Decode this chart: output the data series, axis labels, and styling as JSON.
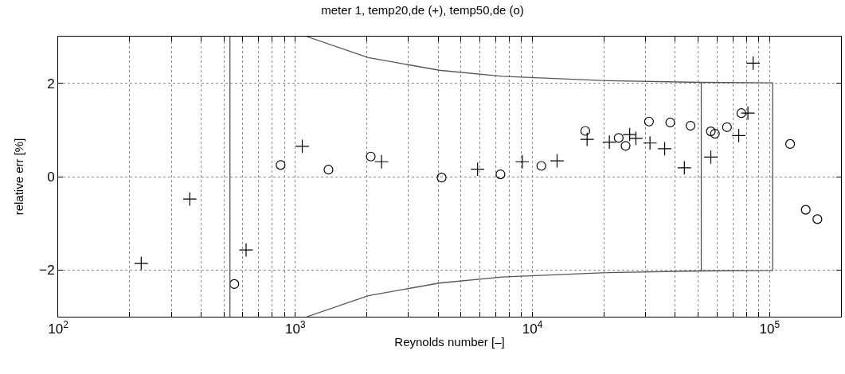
{
  "chart_data": {
    "type": "scatter",
    "title": "meter 1, temp20,de (+), temp50,de (o)",
    "xlabel": "Reynolds number [–]",
    "ylabel": "relative err [%]",
    "log": "x",
    "grid": true,
    "xlim": [
      100,
      200000
    ],
    "ylim": [
      -3,
      3
    ],
    "xticks": [
      {
        "value": 100,
        "label": "10$^{2}$"
      },
      {
        "value": 200,
        "label": null
      },
      {
        "value": 300,
        "label": null
      },
      {
        "value": 400,
        "label": null
      },
      {
        "value": 500,
        "label": null
      },
      {
        "value": 600,
        "label": null
      },
      {
        "value": 700,
        "label": null
      },
      {
        "value": 800,
        "label": null
      },
      {
        "value": 900,
        "label": null
      },
      {
        "value": 1000,
        "label": "10$^{3}$"
      },
      {
        "value": 2000,
        "label": null
      },
      {
        "value": 3000,
        "label": null
      },
      {
        "value": 4000,
        "label": null
      },
      {
        "value": 5000,
        "label": null
      },
      {
        "value": 6000,
        "label": null
      },
      {
        "value": 7000,
        "label": null
      },
      {
        "value": 8000,
        "label": null
      },
      {
        "value": 9000,
        "label": null
      },
      {
        "value": 10000,
        "label": "10$^{4}$"
      },
      {
        "value": 20000,
        "label": null
      },
      {
        "value": 30000,
        "label": null
      },
      {
        "value": 40000,
        "label": null
      },
      {
        "value": 50000,
        "label": null
      },
      {
        "value": 60000,
        "label": null
      },
      {
        "value": 70000,
        "label": null
      },
      {
        "value": 80000,
        "label": null
      },
      {
        "value": 90000,
        "label": null
      },
      {
        "value": 100000,
        "label": "10$^{5}$"
      },
      {
        "value": 200000,
        "label": null
      }
    ],
    "yticks": [
      {
        "value": -2,
        "label": "−2"
      },
      0,
      2
    ],
    "ref_lines": [
      {
        "axis": "x",
        "value": 530,
        "color": "#555555",
        "line_style": "solid"
      }
    ],
    "series": [
      {
        "marker": "cross",
        "color": "#000000",
        "x": [
          224,
          359,
          620,
          1070,
          2310,
          5870,
          9060,
          12700,
          17000,
          21100,
          25700,
          27300,
          31300,
          36100,
          43700,
          56500,
          74100,
          81000,
          85200
        ],
        "values": [
          -1.86,
          -0.48,
          -1.57,
          0.65,
          0.32,
          0.16,
          0.32,
          0.34,
          0.8,
          0.74,
          0.9,
          0.82,
          0.72,
          0.6,
          0.19,
          0.42,
          0.88,
          1.36,
          2.43
        ]
      },
      {
        "marker": "circle",
        "color": "#000000",
        "x": [
          553,
          867,
          1380,
          2080,
          4140,
          7330,
          10900,
          16700,
          23100,
          24700,
          31000,
          38100,
          46400,
          56500,
          58800,
          66100,
          76000,
          122000,
          142000,
          159000
        ],
        "values": [
          -2.3,
          0.25,
          0.15,
          0.43,
          -0.02,
          0.05,
          0.23,
          0.98,
          0.83,
          0.66,
          1.18,
          1.16,
          1.09,
          0.97,
          0.92,
          1.06,
          1.36,
          0.7,
          -0.71,
          -0.91
        ]
      },
      {
        "type": "line",
        "marker": "none",
        "color": "#555555",
        "x": [
          1120,
          2030,
          4040,
          7430,
          19500,
          51500,
          103000,
          103000,
          51500,
          19500,
          7430,
          4040,
          2030,
          1120
        ],
        "values": [
          3,
          2.55,
          2.28,
          2.15,
          2.06,
          2.02,
          2.01,
          -2.01,
          -2.02,
          -2.06,
          -2.15,
          -2.28,
          -2.55,
          -3
        ]
      },
      {
        "type": "line",
        "marker": "none",
        "color": "#555555",
        "x": [
          51500,
          51500
        ],
        "values": [
          -2.02,
          2.02
        ]
      }
    ]
  }
}
